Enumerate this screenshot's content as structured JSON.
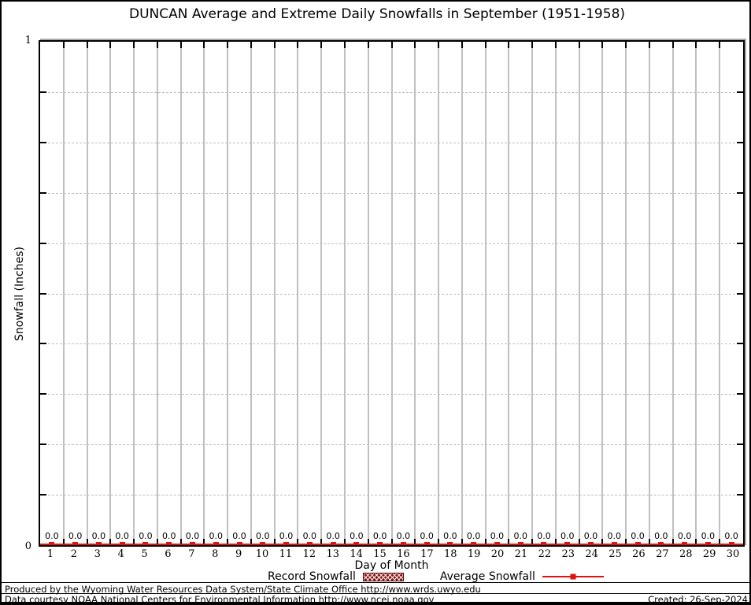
{
  "title": "DUNCAN Average and Extreme Daily Snowfalls in September (1951-1958)",
  "y_axis": {
    "label": "Snowfall (Inches)",
    "max_label": "1",
    "min_label": "0"
  },
  "x_axis": {
    "label": "Day of Month"
  },
  "legend": {
    "record_label": "Record Snowfall",
    "average_label": "Average Snowfall"
  },
  "footer": {
    "line1": "Produced by the Wyoming Water Resources Data System/State Climate Office http://www.wrds.uwyo.edu",
    "line2": "Data courtesy NOAA National Centers for Environmental Information http://www.ncei.noaa.gov",
    "created": "Created: 26-Sep-2024"
  },
  "colors": {
    "average_line": "#e01212",
    "record_fill": "#8b1616",
    "record_border": "#5f0a0a",
    "grid_solid": "#c0c0c0",
    "grid_dashed": "#bdbdbd",
    "axis": "#000000"
  },
  "chart_data": {
    "type": "line",
    "title": "DUNCAN Average and Extreme Daily Snowfalls in September (1951-1958)",
    "xlabel": "Day of Month",
    "ylabel": "Snowfall (Inches)",
    "x": [
      1,
      2,
      3,
      4,
      5,
      6,
      7,
      8,
      9,
      10,
      11,
      12,
      13,
      14,
      15,
      16,
      17,
      18,
      19,
      20,
      21,
      22,
      23,
      24,
      25,
      26,
      27,
      28,
      29,
      30
    ],
    "xlim": [
      0.5,
      30.5
    ],
    "ylim": [
      0,
      1
    ],
    "y_major_tick_labels": [
      "0",
      "1"
    ],
    "y_minor_tick_step": 0.1,
    "grid": {
      "vertical": "solid gray at day boundaries",
      "horizontal": "dashed gray every 0.1"
    },
    "legend_position": "bottom-center",
    "series": [
      {
        "name": "Record Snowfall",
        "style": "hatched-box",
        "color": "#8b1616",
        "values": [
          0,
          0,
          0,
          0,
          0,
          0,
          0,
          0,
          0,
          0,
          0,
          0,
          0,
          0,
          0,
          0,
          0,
          0,
          0,
          0,
          0,
          0,
          0,
          0,
          0,
          0,
          0,
          0,
          0,
          0
        ]
      },
      {
        "name": "Average Snowfall",
        "style": "line-with-square-markers",
        "color": "#e01212",
        "values": [
          0.0,
          0.0,
          0.0,
          0.0,
          0.0,
          0.0,
          0.0,
          0.0,
          0.0,
          0.0,
          0.0,
          0.0,
          0.0,
          0.0,
          0.0,
          0.0,
          0.0,
          0.0,
          0.0,
          0.0,
          0.0,
          0.0,
          0.0,
          0.0,
          0.0,
          0.0,
          0.0,
          0.0,
          0.0,
          0.0
        ],
        "point_labels": [
          "0.0",
          "0.0",
          "0.0",
          "0.0",
          "0.0",
          "0.0",
          "0.0",
          "0.0",
          "0.0",
          "0.0",
          "0.0",
          "0.0",
          "0.0",
          "0.0",
          "0.0",
          "0.0",
          "0.0",
          "0.0",
          "0.0",
          "0.0",
          "0.0",
          "0.0",
          "0.0",
          "0.0",
          "0.0",
          "0.0",
          "0.0",
          "0.0",
          "0.0",
          "0.0"
        ]
      }
    ]
  }
}
